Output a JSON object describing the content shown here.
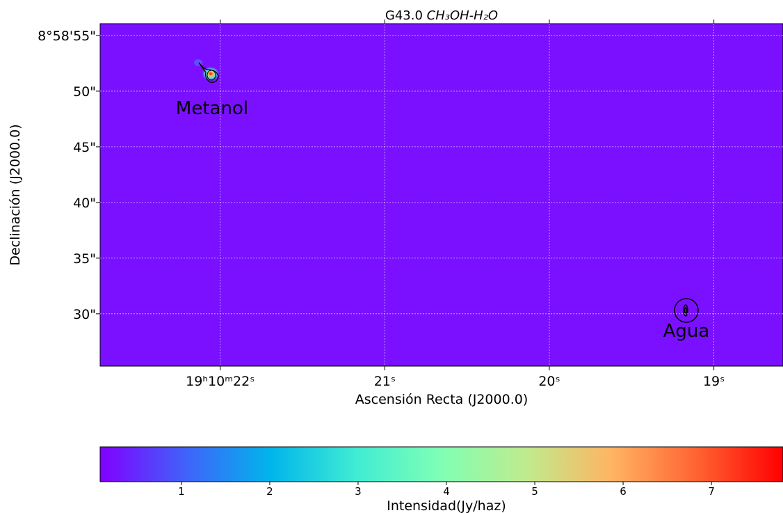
{
  "chart_data": {
    "type": "image",
    "title": "G43.0",
    "title_molecule": "CH₃OH-H₂O",
    "xlabel": "Ascensión Recta (J2000.0)",
    "ylabel": "Declinación (J2000.0)",
    "xlim": [
      22.73,
      18.58
    ],
    "xticks": [
      {
        "value": 22,
        "label": "19ʰ10ᵐ22ˢ"
      },
      {
        "value": 21,
        "label": "21ˢ"
      },
      {
        "value": 20,
        "label": "20ˢ"
      },
      {
        "value": 19,
        "label": "19ˢ"
      }
    ],
    "ylim": [
      25.3,
      56.06
    ],
    "yticks": [
      {
        "value": 55,
        "label": "8°58'55\""
      },
      {
        "value": 50,
        "label": "50\""
      },
      {
        "value": 45,
        "label": "45\""
      },
      {
        "value": 40,
        "label": "40\""
      },
      {
        "value": 35,
        "label": "35\""
      },
      {
        "value": 30,
        "label": "30\""
      }
    ],
    "grid": true,
    "annotations": [
      "Metanol",
      "Agua"
    ],
    "colorbar": {
      "label": "Intensidad(Jy/haz)",
      "lim": [
        0.08,
        7.81
      ],
      "ticks": [
        1,
        2,
        3,
        4,
        5,
        6,
        7
      ]
    }
  }
}
